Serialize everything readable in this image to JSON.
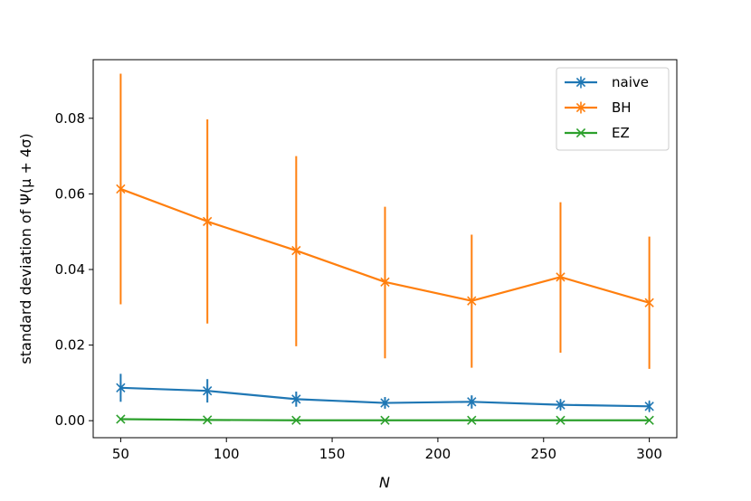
{
  "chart_data": {
    "type": "line",
    "xlabel": "N",
    "ylabel": "standard deviation of Ψ(μ + 4σ)",
    "xlim": [
      37,
      313
    ],
    "ylim": [
      -0.0045,
      0.0955
    ],
    "xticks": [
      50,
      100,
      150,
      200,
      250,
      300
    ],
    "xtick_labels": [
      "50",
      "100",
      "150",
      "200",
      "250",
      "300"
    ],
    "yticks": [
      0.0,
      0.02,
      0.04,
      0.06,
      0.08
    ],
    "ytick_labels": [
      "0.00",
      "0.02",
      "0.04",
      "0.06",
      "0.08"
    ],
    "grid": false,
    "legend": "top-right",
    "x": [
      50,
      91,
      133,
      175,
      216,
      258,
      300
    ],
    "series": [
      {
        "name": "naive",
        "color": "#1f77b4",
        "marker": "asterisk",
        "values": [
          0.0087,
          0.0079,
          0.0057,
          0.0047,
          0.005,
          0.0042,
          0.0038
        ],
        "err_low": [
          0.005,
          0.0048,
          0.0037,
          0.0032,
          0.0032,
          0.003,
          0.0026
        ],
        "err_high": [
          0.0124,
          0.011,
          0.0077,
          0.0062,
          0.0067,
          0.0054,
          0.005
        ]
      },
      {
        "name": "BH",
        "color": "#ff7f0e",
        "marker": "asterisk",
        "values": [
          0.0613,
          0.0527,
          0.045,
          0.0367,
          0.0317,
          0.038,
          0.0312
        ],
        "err_low": [
          0.0308,
          0.0257,
          0.0197,
          0.0165,
          0.014,
          0.018,
          0.0137
        ],
        "err_high": [
          0.0918,
          0.0797,
          0.07,
          0.0566,
          0.0492,
          0.0578,
          0.0487
        ]
      },
      {
        "name": "EZ",
        "color": "#2ca02c",
        "marker": "x",
        "values": [
          0.0004,
          0.0002,
          0.0001,
          0.0001,
          0.0001,
          0.0001,
          0.0001
        ],
        "err_low": [
          0.0002,
          0.0001,
          0.0,
          0.0,
          0.0,
          0.0,
          0.0
        ],
        "err_high": [
          0.0006,
          0.0003,
          0.0002,
          0.0002,
          0.0002,
          0.0002,
          0.0002
        ]
      }
    ]
  }
}
